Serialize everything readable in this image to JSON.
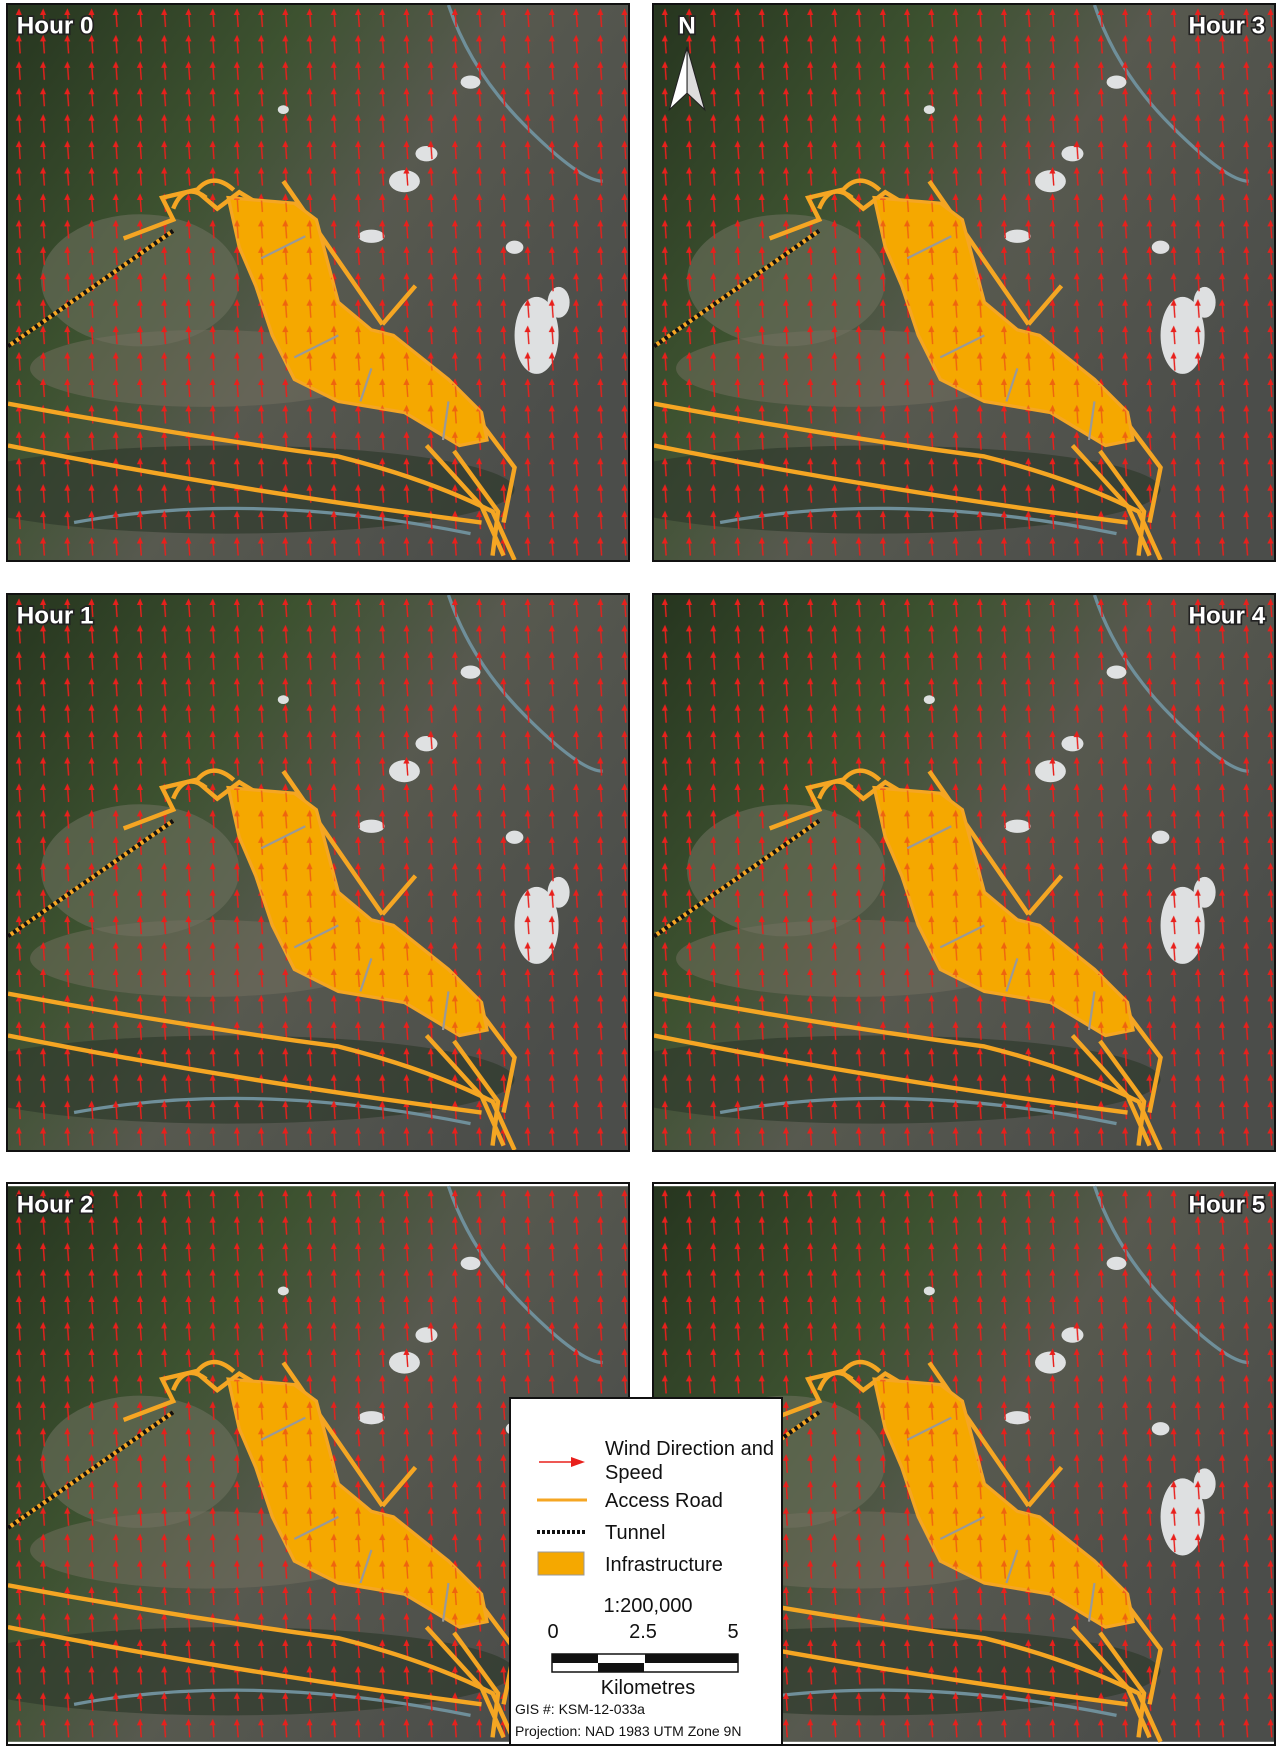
{
  "panels": [
    {
      "label": "Hour 0"
    },
    {
      "label": "Hour 1"
    },
    {
      "label": "Hour 2"
    },
    {
      "label": "Hour 3"
    },
    {
      "label": "Hour 4"
    },
    {
      "label": "Hour 5"
    }
  ],
  "north_arrow": "N",
  "legend": {
    "items": [
      "Wind Direction and Speed",
      "Access Road",
      "Tunnel",
      "Infrastructure"
    ],
    "scale": "1:200,000",
    "scale_ticks": [
      "0",
      "2.5",
      "5"
    ],
    "scale_unit": "Kilometres",
    "gis_number": "GIS #: KSM-12-033a",
    "projection": "Projection: NAD 1983 UTM Zone 9N"
  }
}
